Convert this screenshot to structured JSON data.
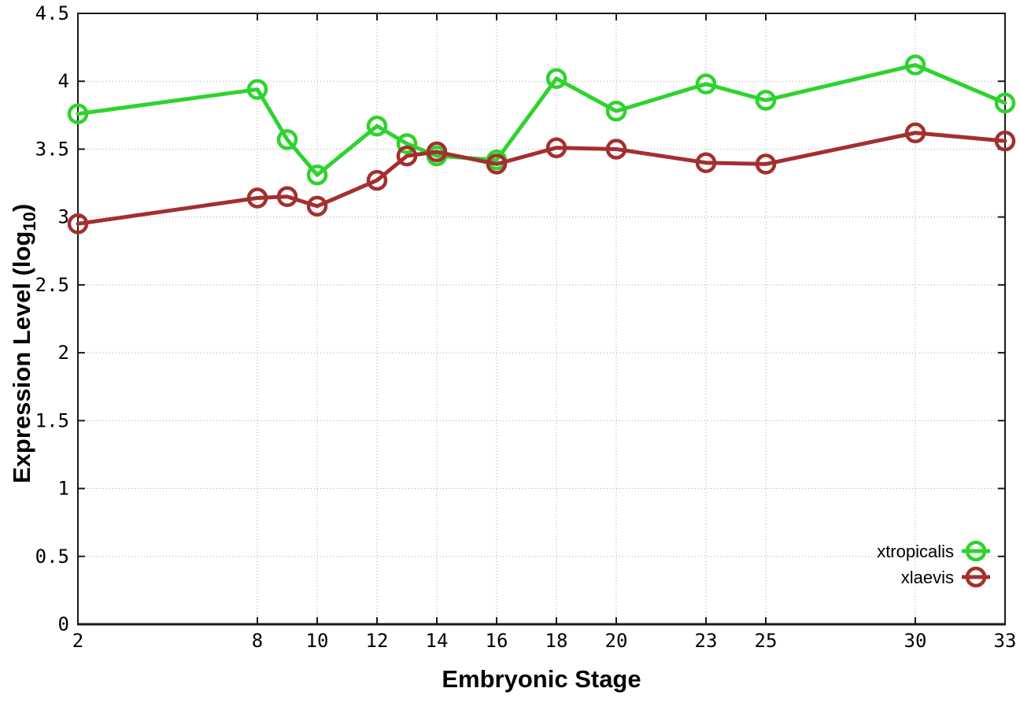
{
  "chart_data": {
    "type": "line",
    "title": "",
    "xlabel": "Embryonic Stage",
    "ylabel": "Expression Level (log10)",
    "ylabel_parts": {
      "main": "Expression Level (log",
      "sub": "10",
      "close": ")"
    },
    "x": [
      2,
      8,
      9,
      10,
      12,
      13,
      14,
      16,
      18,
      20,
      23,
      25,
      30,
      33
    ],
    "series": [
      {
        "name": "xtropicalis",
        "color": "#2ed32e",
        "values": [
          3.76,
          3.94,
          3.57,
          3.31,
          3.67,
          3.54,
          3.45,
          3.42,
          4.02,
          3.78,
          3.98,
          3.86,
          4.12,
          3.84
        ]
      },
      {
        "name": "xlaevis",
        "color": "#a32f2f",
        "values": [
          2.95,
          3.14,
          3.15,
          3.08,
          3.27,
          3.45,
          3.48,
          3.39,
          3.51,
          3.5,
          3.4,
          3.39,
          3.62,
          3.56
        ]
      }
    ],
    "xlim": [
      2,
      33
    ],
    "ylim": [
      0,
      4.5
    ],
    "xtick_values": [
      2,
      8,
      10,
      12,
      14,
      16,
      18,
      20,
      23,
      25,
      30,
      33
    ],
    "xtick_labels": [
      "2",
      "8",
      "10",
      "12",
      "14",
      "16",
      "18",
      "20",
      "23",
      "25",
      "30",
      "33"
    ],
    "ytick_values": [
      0,
      0.5,
      1,
      1.5,
      2,
      2.5,
      3,
      3.5,
      4,
      4.5
    ],
    "ytick_labels": [
      "0",
      "0.5",
      "1",
      "1.5",
      "2",
      "2.5",
      "3",
      "3.5",
      "4",
      "4.5"
    ],
    "grid": "dotted",
    "legend_position": "inside-bottom-right",
    "marker": "open-circle",
    "colors": {
      "background": "#ffffff",
      "border": "#1a1a1a",
      "grid": "#a8a8a8",
      "tick_text": "#000000"
    }
  }
}
